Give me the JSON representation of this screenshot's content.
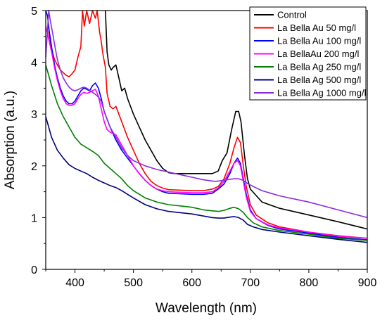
{
  "chart_data": {
    "type": "line",
    "title": "",
    "xlabel": "Wavelength (nm)",
    "ylabel": "Absorption (a.u.)",
    "xlim": [
      350,
      900
    ],
    "ylim": [
      0,
      5
    ],
    "x_ticks": [
      "400",
      "500",
      "600",
      "700",
      "800",
      "900"
    ],
    "y_ticks": [
      "0",
      "1",
      "2",
      "3",
      "4",
      "5"
    ],
    "grid": false,
    "legend_position": "top-right",
    "series": [
      {
        "name": "Control",
        "color": "#000000",
        "points": [
          [
            452,
            5.0
          ],
          [
            455,
            4.2
          ],
          [
            458,
            3.95
          ],
          [
            462,
            3.85
          ],
          [
            465,
            3.9
          ],
          [
            470,
            3.95
          ],
          [
            475,
            3.7
          ],
          [
            480,
            3.45
          ],
          [
            485,
            3.5
          ],
          [
            490,
            3.3
          ],
          [
            500,
            3.0
          ],
          [
            510,
            2.75
          ],
          [
            520,
            2.5
          ],
          [
            530,
            2.3
          ],
          [
            540,
            2.1
          ],
          [
            550,
            1.95
          ],
          [
            560,
            1.87
          ],
          [
            570,
            1.85
          ],
          [
            580,
            1.85
          ],
          [
            600,
            1.85
          ],
          [
            620,
            1.85
          ],
          [
            635,
            1.85
          ],
          [
            645,
            1.9
          ],
          [
            652,
            2.1
          ],
          [
            660,
            2.25
          ],
          [
            668,
            2.7
          ],
          [
            675,
            3.05
          ],
          [
            680,
            3.05
          ],
          [
            684,
            2.85
          ],
          [
            690,
            2.2
          ],
          [
            695,
            1.75
          ],
          [
            700,
            1.55
          ],
          [
            720,
            1.3
          ],
          [
            750,
            1.18
          ],
          [
            800,
            1.05
          ],
          [
            850,
            0.92
          ],
          [
            900,
            0.78
          ]
        ]
      },
      {
        "name": "La Bella Au 50 mg/l",
        "color": "#ff0000",
        "points": [
          [
            355,
            4.6
          ],
          [
            360,
            4.25
          ],
          [
            365,
            4.05
          ],
          [
            370,
            3.95
          ],
          [
            375,
            3.85
          ],
          [
            380,
            3.8
          ],
          [
            385,
            3.75
          ],
          [
            390,
            3.72
          ],
          [
            395,
            3.78
          ],
          [
            400,
            3.85
          ],
          [
            405,
            4.1
          ],
          [
            410,
            4.3
          ],
          [
            413,
            5.0
          ],
          [
            416,
            4.7
          ],
          [
            420,
            5.0
          ],
          [
            425,
            4.75
          ],
          [
            430,
            5.0
          ],
          [
            435,
            4.85
          ],
          [
            438,
            5.0
          ],
          [
            442,
            4.6
          ],
          [
            445,
            4.4
          ],
          [
            448,
            4.15
          ],
          [
            452,
            3.9
          ],
          [
            455,
            3.4
          ],
          [
            460,
            3.15
          ],
          [
            465,
            3.1
          ],
          [
            470,
            3.15
          ],
          [
            475,
            3.0
          ],
          [
            480,
            2.85
          ],
          [
            490,
            2.55
          ],
          [
            500,
            2.3
          ],
          [
            510,
            2.05
          ],
          [
            520,
            1.85
          ],
          [
            530,
            1.7
          ],
          [
            540,
            1.62
          ],
          [
            550,
            1.57
          ],
          [
            560,
            1.54
          ],
          [
            600,
            1.52
          ],
          [
            620,
            1.52
          ],
          [
            635,
            1.55
          ],
          [
            645,
            1.6
          ],
          [
            655,
            1.75
          ],
          [
            665,
            2.05
          ],
          [
            672,
            2.35
          ],
          [
            678,
            2.55
          ],
          [
            683,
            2.45
          ],
          [
            688,
            2.0
          ],
          [
            693,
            1.6
          ],
          [
            700,
            1.25
          ],
          [
            710,
            1.05
          ],
          [
            730,
            0.9
          ],
          [
            750,
            0.82
          ],
          [
            800,
            0.72
          ],
          [
            850,
            0.65
          ],
          [
            900,
            0.6
          ]
        ]
      },
      {
        "name": "La Bella Au 100 mg/l",
        "color": "#0000ff",
        "points": [
          [
            350,
            5.0
          ],
          [
            353,
            4.9
          ],
          [
            356,
            4.6
          ],
          [
            360,
            4.3
          ],
          [
            365,
            3.95
          ],
          [
            370,
            3.7
          ],
          [
            375,
            3.5
          ],
          [
            380,
            3.35
          ],
          [
            385,
            3.25
          ],
          [
            390,
            3.2
          ],
          [
            395,
            3.2
          ],
          [
            400,
            3.25
          ],
          [
            405,
            3.35
          ],
          [
            410,
            3.45
          ],
          [
            415,
            3.5
          ],
          [
            420,
            3.48
          ],
          [
            425,
            3.45
          ],
          [
            430,
            3.55
          ],
          [
            435,
            3.6
          ],
          [
            440,
            3.5
          ],
          [
            445,
            3.3
          ],
          [
            450,
            3.05
          ],
          [
            460,
            2.75
          ],
          [
            470,
            2.5
          ],
          [
            480,
            2.3
          ],
          [
            490,
            2.15
          ],
          [
            500,
            2.0
          ],
          [
            510,
            1.85
          ],
          [
            520,
            1.72
          ],
          [
            530,
            1.62
          ],
          [
            540,
            1.55
          ],
          [
            550,
            1.5
          ],
          [
            560,
            1.47
          ],
          [
            600,
            1.45
          ],
          [
            620,
            1.45
          ],
          [
            635,
            1.47
          ],
          [
            645,
            1.55
          ],
          [
            655,
            1.65
          ],
          [
            665,
            1.85
          ],
          [
            672,
            2.05
          ],
          [
            678,
            2.15
          ],
          [
            683,
            2.05
          ],
          [
            688,
            1.75
          ],
          [
            693,
            1.45
          ],
          [
            700,
            1.15
          ],
          [
            710,
            0.98
          ],
          [
            730,
            0.85
          ],
          [
            750,
            0.78
          ],
          [
            800,
            0.7
          ],
          [
            850,
            0.62
          ],
          [
            900,
            0.57
          ]
        ]
      },
      {
        "name": "La BellaAu 200 mg/l",
        "color": "#ff00ff",
        "points": [
          [
            350,
            4.7
          ],
          [
            355,
            4.45
          ],
          [
            360,
            4.2
          ],
          [
            365,
            3.9
          ],
          [
            370,
            3.65
          ],
          [
            375,
            3.45
          ],
          [
            380,
            3.3
          ],
          [
            385,
            3.2
          ],
          [
            390,
            3.17
          ],
          [
            395,
            3.17
          ],
          [
            400,
            3.2
          ],
          [
            405,
            3.3
          ],
          [
            410,
            3.38
          ],
          [
            415,
            3.42
          ],
          [
            420,
            3.4
          ],
          [
            425,
            3.42
          ],
          [
            430,
            3.45
          ],
          [
            435,
            3.48
          ],
          [
            440,
            3.35
          ],
          [
            445,
            3.1
          ],
          [
            450,
            2.85
          ],
          [
            455,
            2.7
          ],
          [
            460,
            2.65
          ],
          [
            470,
            2.6
          ],
          [
            480,
            2.4
          ],
          [
            490,
            2.2
          ],
          [
            500,
            2.0
          ],
          [
            510,
            1.85
          ],
          [
            520,
            1.72
          ],
          [
            530,
            1.62
          ],
          [
            540,
            1.55
          ],
          [
            550,
            1.52
          ],
          [
            560,
            1.5
          ],
          [
            600,
            1.48
          ],
          [
            620,
            1.48
          ],
          [
            635,
            1.5
          ],
          [
            645,
            1.57
          ],
          [
            655,
            1.7
          ],
          [
            665,
            1.9
          ],
          [
            672,
            2.05
          ],
          [
            678,
            2.1
          ],
          [
            683,
            2.0
          ],
          [
            688,
            1.7
          ],
          [
            693,
            1.4
          ],
          [
            700,
            1.12
          ],
          [
            710,
            0.98
          ],
          [
            730,
            0.86
          ],
          [
            750,
            0.8
          ],
          [
            800,
            0.72
          ],
          [
            850,
            0.64
          ],
          [
            900,
            0.6
          ]
        ]
      },
      {
        "name": "La Bella Ag 250 mg/l",
        "color": "#008000",
        "points": [
          [
            350,
            3.95
          ],
          [
            355,
            3.75
          ],
          [
            360,
            3.55
          ],
          [
            370,
            3.2
          ],
          [
            380,
            2.95
          ],
          [
            390,
            2.75
          ],
          [
            400,
            2.55
          ],
          [
            410,
            2.42
          ],
          [
            420,
            2.35
          ],
          [
            430,
            2.28
          ],
          [
            440,
            2.2
          ],
          [
            450,
            2.05
          ],
          [
            460,
            1.95
          ],
          [
            470,
            1.85
          ],
          [
            480,
            1.75
          ],
          [
            490,
            1.62
          ],
          [
            500,
            1.52
          ],
          [
            520,
            1.38
          ],
          [
            540,
            1.3
          ],
          [
            560,
            1.25
          ],
          [
            600,
            1.2
          ],
          [
            620,
            1.15
          ],
          [
            635,
            1.13
          ],
          [
            645,
            1.12
          ],
          [
            655,
            1.14
          ],
          [
            665,
            1.18
          ],
          [
            672,
            1.2
          ],
          [
            680,
            1.17
          ],
          [
            688,
            1.1
          ],
          [
            695,
            1.0
          ],
          [
            705,
            0.9
          ],
          [
            720,
            0.82
          ],
          [
            750,
            0.75
          ],
          [
            800,
            0.68
          ],
          [
            850,
            0.6
          ],
          [
            900,
            0.56
          ]
        ]
      },
      {
        "name": "La Bella Ag 500 mg/l",
        "color": "#000080",
        "points": [
          [
            350,
            2.95
          ],
          [
            355,
            2.75
          ],
          [
            360,
            2.55
          ],
          [
            370,
            2.3
          ],
          [
            380,
            2.15
          ],
          [
            390,
            2.02
          ],
          [
            400,
            1.95
          ],
          [
            410,
            1.9
          ],
          [
            420,
            1.85
          ],
          [
            430,
            1.78
          ],
          [
            440,
            1.72
          ],
          [
            450,
            1.67
          ],
          [
            460,
            1.62
          ],
          [
            470,
            1.58
          ],
          [
            480,
            1.52
          ],
          [
            490,
            1.45
          ],
          [
            500,
            1.38
          ],
          [
            520,
            1.25
          ],
          [
            540,
            1.17
          ],
          [
            560,
            1.12
          ],
          [
            600,
            1.07
          ],
          [
            620,
            1.03
          ],
          [
            635,
            1.0
          ],
          [
            645,
            0.99
          ],
          [
            655,
            0.99
          ],
          [
            665,
            1.01
          ],
          [
            672,
            1.02
          ],
          [
            680,
            1.0
          ],
          [
            688,
            0.95
          ],
          [
            695,
            0.87
          ],
          [
            705,
            0.82
          ],
          [
            720,
            0.77
          ],
          [
            750,
            0.72
          ],
          [
            800,
            0.65
          ],
          [
            850,
            0.58
          ],
          [
            900,
            0.52
          ]
        ]
      },
      {
        "name": "La Bella Ag 1000 mg/l",
        "color": "#8a2be2",
        "points": [
          [
            350,
            4.1
          ],
          [
            353,
            4.6
          ],
          [
            355,
            5.0
          ],
          [
            358,
            4.8
          ],
          [
            362,
            4.55
          ],
          [
            365,
            4.35
          ],
          [
            370,
            4.05
          ],
          [
            375,
            3.85
          ],
          [
            380,
            3.7
          ],
          [
            385,
            3.6
          ],
          [
            390,
            3.52
          ],
          [
            395,
            3.47
          ],
          [
            400,
            3.45
          ],
          [
            405,
            3.47
          ],
          [
            410,
            3.5
          ],
          [
            415,
            3.52
          ],
          [
            420,
            3.5
          ],
          [
            425,
            3.46
          ],
          [
            430,
            3.42
          ],
          [
            435,
            3.38
          ],
          [
            440,
            3.33
          ],
          [
            445,
            3.25
          ],
          [
            450,
            3.05
          ],
          [
            460,
            2.75
          ],
          [
            470,
            2.55
          ],
          [
            480,
            2.35
          ],
          [
            490,
            2.2
          ],
          [
            500,
            2.1
          ],
          [
            520,
            2.0
          ],
          [
            540,
            1.93
          ],
          [
            560,
            1.88
          ],
          [
            580,
            1.83
          ],
          [
            600,
            1.78
          ],
          [
            620,
            1.73
          ],
          [
            640,
            1.7
          ],
          [
            655,
            1.72
          ],
          [
            665,
            1.74
          ],
          [
            672,
            1.75
          ],
          [
            680,
            1.75
          ],
          [
            688,
            1.72
          ],
          [
            695,
            1.66
          ],
          [
            705,
            1.6
          ],
          [
            720,
            1.52
          ],
          [
            750,
            1.42
          ],
          [
            800,
            1.3
          ],
          [
            850,
            1.15
          ],
          [
            900,
            1.0
          ]
        ]
      }
    ]
  }
}
